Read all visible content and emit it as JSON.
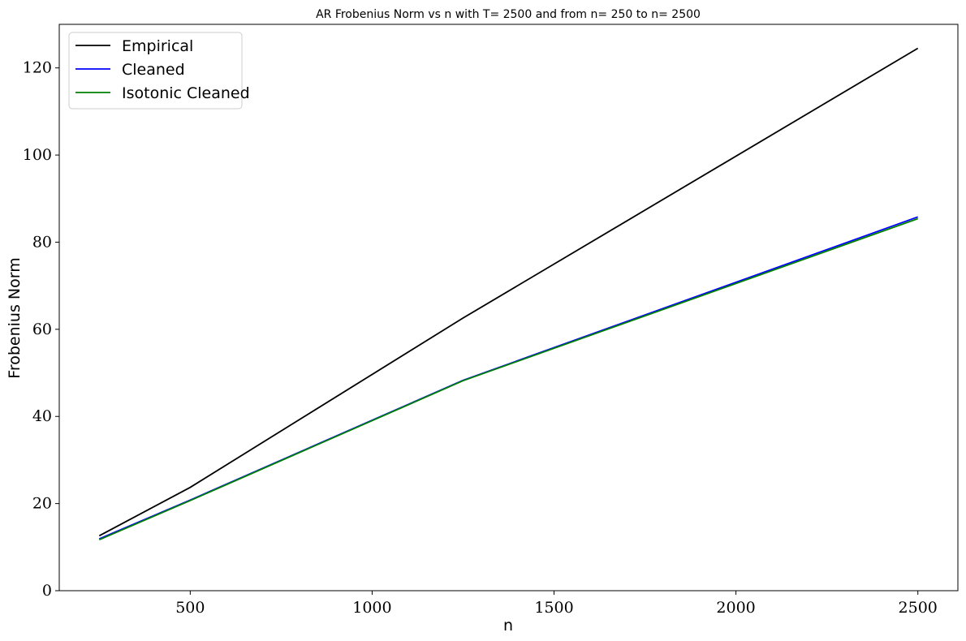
{
  "chart_data": {
    "type": "line",
    "title": "AR Frobenius Norm vs n with T= 2500 and from n= 250 to n= 2500",
    "xlabel": "n",
    "ylabel": "Frobenius Norm",
    "xlim": [
      140,
      2610
    ],
    "ylim": [
      0,
      130
    ],
    "xticks": [
      500,
      1000,
      1500,
      2000,
      2500
    ],
    "yticks": [
      0,
      20,
      40,
      60,
      80,
      100,
      120
    ],
    "grid": false,
    "legend_position": "top-left",
    "x": [
      250,
      500,
      1250,
      2500
    ],
    "series": [
      {
        "name": "Empirical",
        "color": "#000000",
        "values": [
          12.6,
          23.7,
          62.6,
          124.5
        ]
      },
      {
        "name": "Cleaned",
        "color": "#0000ff",
        "values": [
          11.9,
          20.8,
          48.3,
          85.8
        ]
      },
      {
        "name": "Isotonic Cleaned",
        "color": "#008000",
        "values": [
          11.7,
          20.7,
          48.2,
          85.4
        ]
      }
    ]
  }
}
